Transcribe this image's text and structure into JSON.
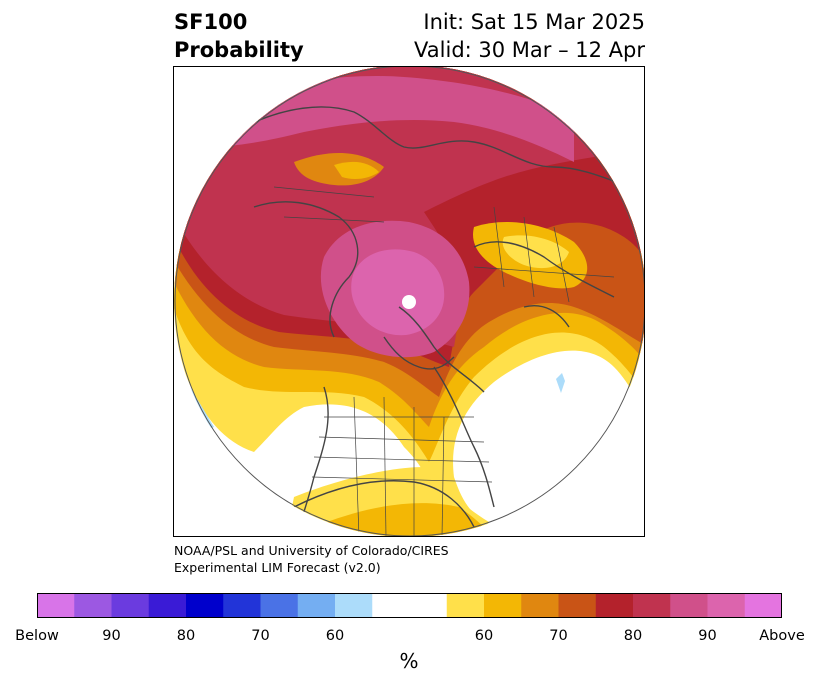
{
  "header": {
    "product": "SF100",
    "product_line2": "Probability",
    "init": "Init: Sat 15 Mar 2025",
    "valid": "Valid: 30 Mar – 12 Apr"
  },
  "credit": {
    "line1": "NOAA/PSL and University of Colorado/CIRES",
    "line2": "Experimental LIM Forecast (v2.0)"
  },
  "colorbar": {
    "colors": [
      "#d874e8",
      "#9c58e2",
      "#6b3bdf",
      "#3a1bd6",
      "#0000cc",
      "#2234d8",
      "#4a72e6",
      "#74aef2",
      "#acdcfa",
      "#ffffff",
      "#ffe04a",
      "#f3b705",
      "#e08710",
      "#c95416",
      "#b4222c",
      "#c0334f",
      "#d0508a",
      "#dc64ad",
      "#e474e0"
    ],
    "labels": [
      "Below",
      "90",
      "80",
      "70",
      "60",
      "60",
      "70",
      "80",
      "90",
      "Above"
    ],
    "unit": "%"
  }
}
